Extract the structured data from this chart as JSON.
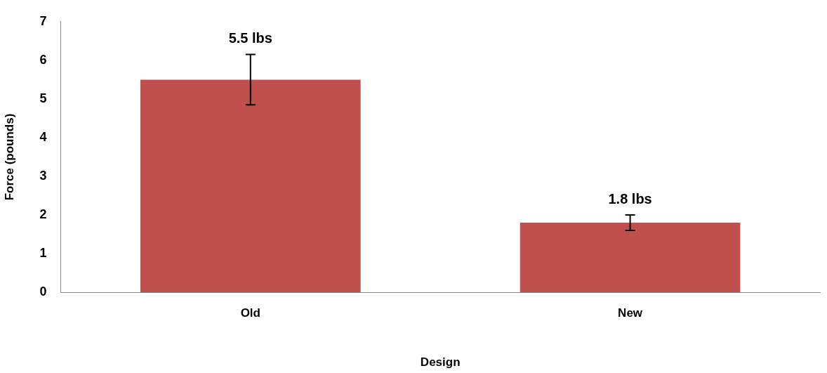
{
  "chart_data": {
    "type": "bar",
    "xlabel": "Design",
    "ylabel": "Force (pounds)",
    "categories": [
      "Old",
      "New"
    ],
    "series": [
      {
        "color": "#c0504d",
        "values": [
          5.5,
          1.8
        ],
        "errors": [
          0.65,
          0.2
        ],
        "value_labels": [
          "5.5 lbs",
          "1.8 lbs"
        ]
      }
    ],
    "ylim": [
      0,
      7
    ],
    "yticks": [
      0,
      1,
      2,
      3,
      4,
      5,
      6,
      7
    ],
    "grid": false,
    "legend": false
  }
}
